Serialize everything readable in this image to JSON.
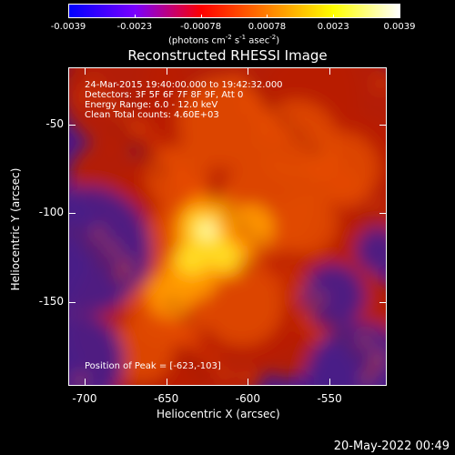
{
  "colorbar": {
    "ticks": [
      "-0.0039",
      "-0.0023",
      "-0.00078",
      "0.00078",
      "0.0023",
      "0.0039"
    ],
    "units_main": "(photons cm",
    "units_exp1": "-2",
    "units_mid1": " s",
    "units_exp2": "-1",
    "units_mid2": " asec",
    "units_exp3": "-2",
    "units_end": ")",
    "colors": [
      "#0000ff",
      "#7a00ff",
      "#ff0000",
      "#ff8000",
      "#ffff00",
      "#ffffff"
    ]
  },
  "annotations": {
    "time_range": "24-Mar-2015 19:40:00.000 to 19:42:32.000",
    "detectors": "Detectors: 3F 5F 6F 7F 8F 9F, Att 0",
    "energy": "Energy Range: 6.0 - 12.0 keV",
    "clean": "Clean      Total counts: 4.60E+03",
    "peak": "Position of Peak = [-623,-103]"
  },
  "footer": {
    "date": "20-May-2022 00:49"
  },
  "chart_data": {
    "type": "heatmap",
    "title": "Reconstructed RHESSI Image",
    "xlabel": "Heliocentric X (arcsec)",
    "ylabel": "Heliocentric Y (arcsec)",
    "xlim": [
      -710,
      -515
    ],
    "ylim": [
      -197,
      -18
    ],
    "x_ticks": [
      -700,
      -650,
      -600,
      -550
    ],
    "y_ticks": [
      -50,
      -100,
      -150
    ],
    "x_tick_labels": [
      "-700",
      "-650",
      "-600",
      "-550"
    ],
    "y_tick_labels": [
      "-50",
      "-100",
      "-150"
    ],
    "peak": {
      "x": -623,
      "y": -103
    }
  }
}
